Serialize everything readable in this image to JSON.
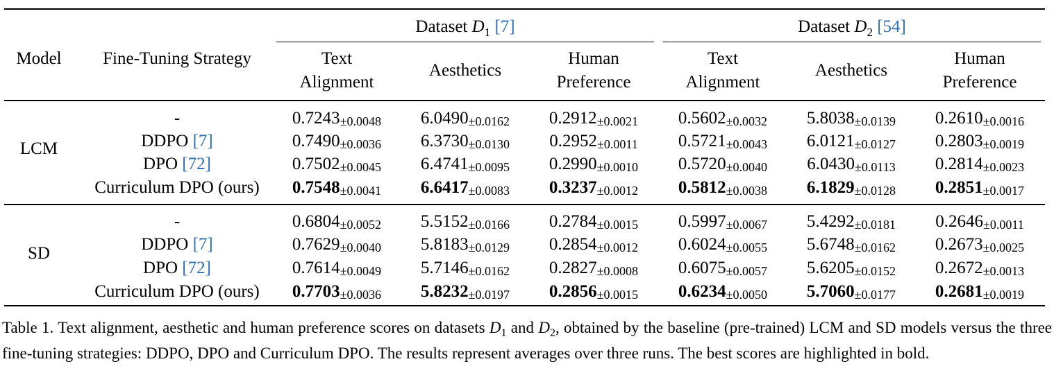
{
  "headers": {
    "model": "Model",
    "strategy": "Fine-Tuning Strategy",
    "dataset1": {
      "prefix": "Dataset ",
      "var": "D",
      "sub": "1",
      "cite": "[7]"
    },
    "dataset2": {
      "prefix": "Dataset ",
      "var": "D",
      "sub": "2",
      "cite": "[54]"
    },
    "metrics": [
      {
        "line1": "Text",
        "line2": "Alignment"
      },
      {
        "line1": "Aesthetics",
        "line2": ""
      },
      {
        "line1": "Human",
        "line2": "Preference"
      },
      {
        "line1": "Text",
        "line2": "Alignment"
      },
      {
        "line1": "Aesthetics",
        "line2": ""
      },
      {
        "line1": "Human",
        "line2": "Preference"
      }
    ]
  },
  "groups": [
    {
      "model": "LCM",
      "rows": [
        {
          "strategy": "-",
          "cite": "",
          "cells": [
            {
              "v": "0.7243",
              "s": "±0.0048",
              "b": false
            },
            {
              "v": "6.0490",
              "s": "±0.0162",
              "b": false
            },
            {
              "v": "0.2912",
              "s": "±0.0021",
              "b": false
            },
            {
              "v": "0.5602",
              "s": "±0.0032",
              "b": false
            },
            {
              "v": "5.8038",
              "s": "±0.0139",
              "b": false
            },
            {
              "v": "0.2610",
              "s": "±0.0016",
              "b": false
            }
          ]
        },
        {
          "strategy": "DDPO ",
          "cite": "[7]",
          "cells": [
            {
              "v": "0.7490",
              "s": "±0.0036",
              "b": false
            },
            {
              "v": "6.3730",
              "s": "±0.0130",
              "b": false
            },
            {
              "v": "0.2952",
              "s": "±0.0011",
              "b": false
            },
            {
              "v": "0.5721",
              "s": "±0.0043",
              "b": false
            },
            {
              "v": "6.0121",
              "s": "±0.0127",
              "b": false
            },
            {
              "v": "0.2803",
              "s": "±0.0019",
              "b": false
            }
          ]
        },
        {
          "strategy": "DPO ",
          "cite": "[72]",
          "cells": [
            {
              "v": "0.7502",
              "s": "±0.0045",
              "b": false
            },
            {
              "v": "6.4741",
              "s": "±0.0095",
              "b": false
            },
            {
              "v": "0.2990",
              "s": "±0.0010",
              "b": false
            },
            {
              "v": "0.5720",
              "s": "±0.0040",
              "b": false
            },
            {
              "v": "6.0430",
              "s": "±0.0113",
              "b": false
            },
            {
              "v": "0.2814",
              "s": "±0.0023",
              "b": false
            }
          ]
        },
        {
          "strategy": "Curriculum DPO (ours)",
          "cite": "",
          "cells": [
            {
              "v": "0.7548",
              "s": "±0.0041",
              "b": true
            },
            {
              "v": "6.6417",
              "s": "±0.0083",
              "b": true
            },
            {
              "v": "0.3237",
              "s": "±0.0012",
              "b": true
            },
            {
              "v": "0.5812",
              "s": "±0.0038",
              "b": true
            },
            {
              "v": "6.1829",
              "s": "±0.0128",
              "b": true
            },
            {
              "v": "0.2851",
              "s": "±0.0017",
              "b": true
            }
          ]
        }
      ]
    },
    {
      "model": "SD",
      "rows": [
        {
          "strategy": "-",
          "cite": "",
          "cells": [
            {
              "v": "0.6804",
              "s": "±0.0052",
              "b": false
            },
            {
              "v": "5.5152",
              "s": "±0.0166",
              "b": false
            },
            {
              "v": "0.2784",
              "s": "±0.0015",
              "b": false
            },
            {
              "v": "0.5997",
              "s": "±0.0067",
              "b": false
            },
            {
              "v": "5.4292",
              "s": "±0.0181",
              "b": false
            },
            {
              "v": "0.2646",
              "s": "±0.0011",
              "b": false
            }
          ]
        },
        {
          "strategy": "DDPO ",
          "cite": "[7]",
          "cells": [
            {
              "v": "0.7629",
              "s": "±0.0040",
              "b": false
            },
            {
              "v": "5.8183",
              "s": "±0.0129",
              "b": false
            },
            {
              "v": "0.2854",
              "s": "±0.0012",
              "b": false
            },
            {
              "v": "0.6024",
              "s": "±0.0055",
              "b": false
            },
            {
              "v": "5.6748",
              "s": "±0.0162",
              "b": false
            },
            {
              "v": "0.2673",
              "s": "±0.0025",
              "b": false
            }
          ]
        },
        {
          "strategy": "DPO ",
          "cite": "[72]",
          "cells": [
            {
              "v": "0.7614",
              "s": "±0.0049",
              "b": false
            },
            {
              "v": "5.7146",
              "s": "±0.0162",
              "b": false
            },
            {
              "v": "0.2827",
              "s": "±0.0008",
              "b": false
            },
            {
              "v": "0.6075",
              "s": "±0.0057",
              "b": false
            },
            {
              "v": "5.6205",
              "s": "±0.0152",
              "b": false
            },
            {
              "v": "0.2672",
              "s": "±0.0013",
              "b": false
            }
          ]
        },
        {
          "strategy": "Curriculum DPO (ours)",
          "cite": "",
          "cells": [
            {
              "v": "0.7703",
              "s": "±0.0036",
              "b": true
            },
            {
              "v": "5.8232",
              "s": "±0.0197",
              "b": true
            },
            {
              "v": "0.2856",
              "s": "±0.0015",
              "b": true
            },
            {
              "v": "0.6234",
              "s": "±0.0050",
              "b": true
            },
            {
              "v": "5.7060",
              "s": "±0.0177",
              "b": true
            },
            {
              "v": "0.2681",
              "s": "±0.0019",
              "b": true
            }
          ]
        }
      ]
    }
  ],
  "caption": {
    "p1": "Table 1. Text alignment, aesthetic and human preference scores on datasets ",
    "d1": {
      "var": "D",
      "sub": "1"
    },
    "p2": " and ",
    "d2": {
      "var": "D",
      "sub": "2"
    },
    "p3": ", obtained by the baseline (pre-trained) LCM and SD models versus the three fine-tuning strategies: DDPO, DPO and Curriculum DPO. The results represent averages over three runs. The best scores are highlighted in bold."
  }
}
